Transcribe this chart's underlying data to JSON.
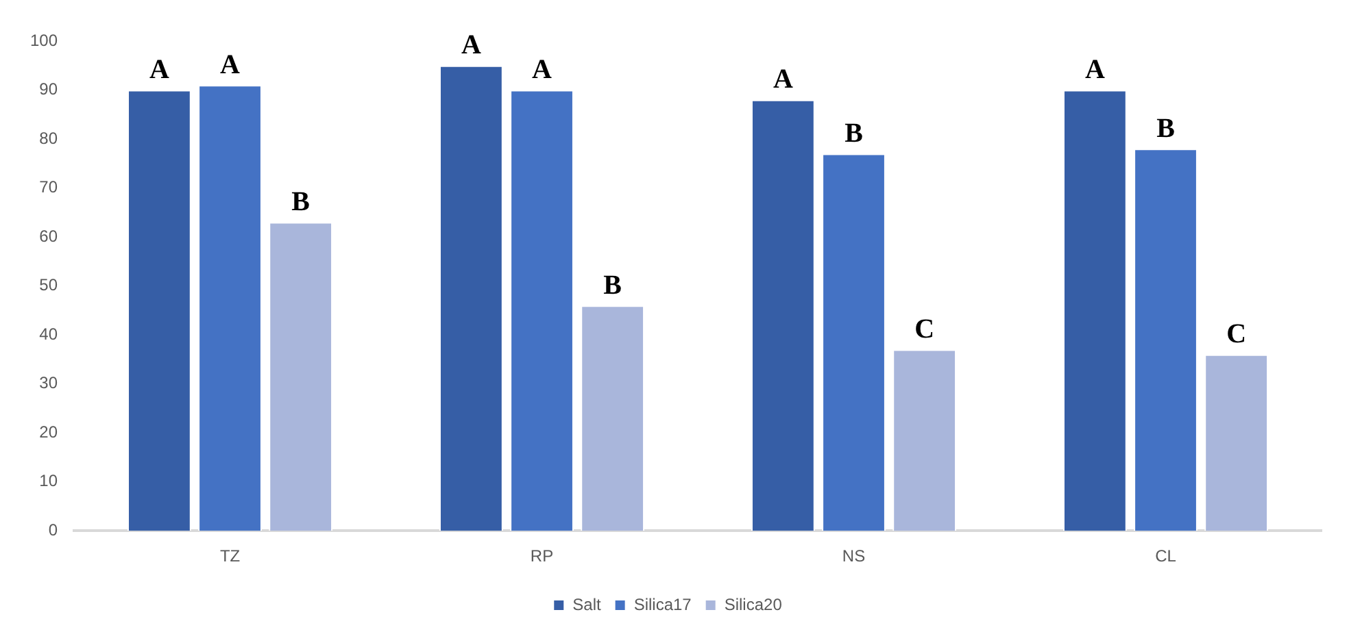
{
  "chart_data": {
    "type": "bar",
    "categories": [
      "TZ",
      "RP",
      "NS",
      "CL"
    ],
    "series": [
      {
        "name": "Salt",
        "color": "#365ea6",
        "values": [
          90,
          95,
          88,
          90
        ],
        "value_labels": [
          "A",
          "A",
          "A",
          "A"
        ]
      },
      {
        "name": "Silica17",
        "color": "#4472c4",
        "values": [
          91,
          90,
          77,
          78
        ],
        "value_labels": [
          "A",
          "A",
          "B",
          "B"
        ]
      },
      {
        "name": "Silica20",
        "color": "#a9b6db",
        "values": [
          63,
          46,
          37,
          36
        ],
        "value_labels": [
          "B",
          "B",
          "C",
          "C"
        ]
      }
    ],
    "ylim": [
      0,
      100
    ],
    "yticks": [
      0,
      10,
      20,
      30,
      40,
      50,
      60,
      70,
      80,
      90,
      100
    ],
    "grid": false,
    "legend": "bottom"
  }
}
